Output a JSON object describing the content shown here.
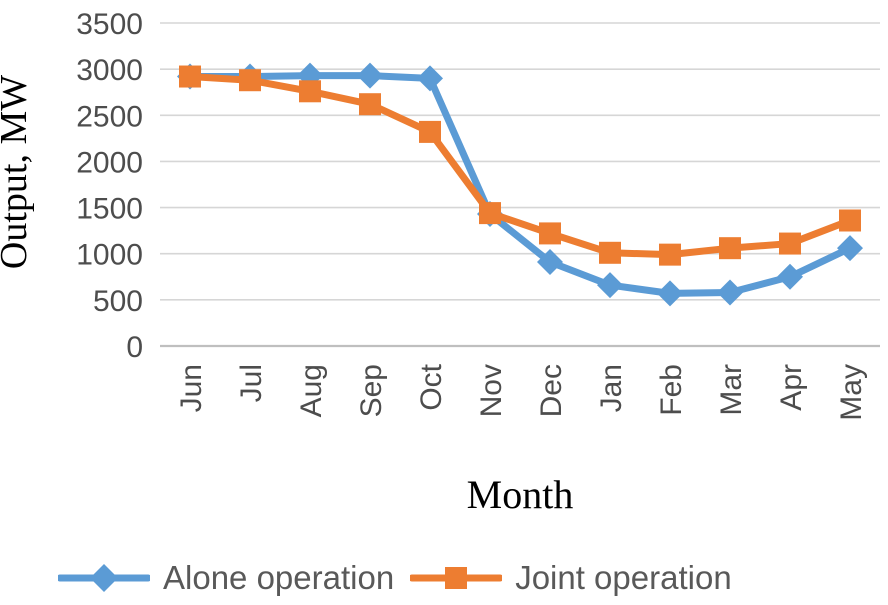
{
  "chart_data": {
    "type": "line",
    "title": "",
    "xlabel": "Month",
    "ylabel": "Output, MW",
    "categories": [
      "Jun",
      "Jul",
      "Aug",
      "Sep",
      "Oct",
      "Nov",
      "Dec",
      "Jan",
      "Feb",
      "Mar",
      "Apr",
      "May"
    ],
    "series": [
      {
        "name": "Alone operation",
        "color": "#5B9BD5",
        "marker": "diamond",
        "values": [
          2920,
          2920,
          2930,
          2930,
          2900,
          1430,
          910,
          660,
          570,
          580,
          750,
          1060
        ]
      },
      {
        "name": "Joint operation",
        "color": "#ED7D31",
        "marker": "square",
        "values": [
          2920,
          2880,
          2760,
          2620,
          2320,
          1440,
          1220,
          1010,
          990,
          1060,
          1110,
          1360
        ]
      }
    ],
    "ylim": [
      0,
      3500
    ],
    "yticks": [
      0,
      500,
      1000,
      1500,
      2000,
      2500,
      3000,
      3500
    ],
    "grid": "horizontal",
    "legend_position": "bottom"
  },
  "colors": {
    "grid": "#D6D6D6",
    "axis_line": "#BFBFBF",
    "tick_label": "#4D4D4D",
    "legend_text": "#595959"
  }
}
